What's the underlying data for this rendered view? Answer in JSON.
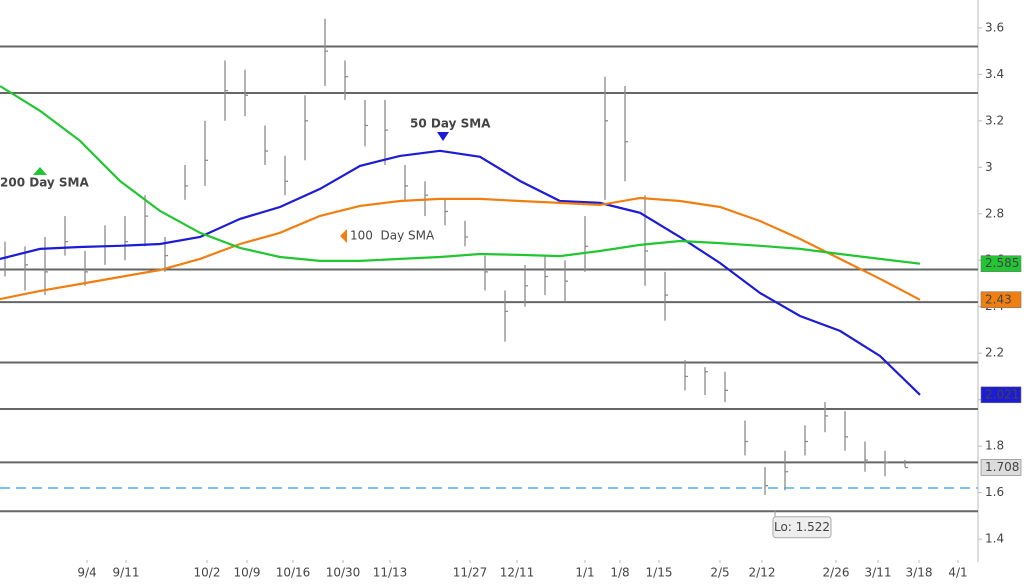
{
  "chart_data": {
    "type": "ohlc",
    "xlim": [
      0,
      195.6
    ],
    "ylim": [
      1.31,
      3.72
    ],
    "yticks": [
      1.4,
      1.6,
      1.8,
      2,
      2.2,
      2.4,
      2.6,
      2.8,
      3,
      3.2,
      3.4,
      3.6
    ],
    "xticks": [
      {
        "value": 17.4,
        "label": "9/4"
      },
      {
        "value": 25.2,
        "label": "9/11"
      },
      {
        "value": 41.4,
        "label": "10/2"
      },
      {
        "value": 49.4,
        "label": "10/9"
      },
      {
        "value": 58.6,
        "label": "10/16"
      },
      {
        "value": 68.6,
        "label": "10/30"
      },
      {
        "value": 78,
        "label": "11/13"
      },
      {
        "value": 94,
        "label": "11/27"
      },
      {
        "value": 103.4,
        "label": "12/11"
      },
      {
        "value": 117,
        "label": "1/1"
      },
      {
        "value": 124,
        "label": "1/8"
      },
      {
        "value": 131.8,
        "label": "1/15"
      },
      {
        "value": 144,
        "label": "2/5"
      },
      {
        "value": 152.4,
        "label": "2/12"
      },
      {
        "value": 167.2,
        "label": "2/26"
      },
      {
        "value": 175.6,
        "label": "3/11"
      },
      {
        "value": 183.8,
        "label": "3/18"
      },
      {
        "value": 191.6,
        "label": "4/1"
      }
    ],
    "price": {
      "color": "#8a8a8a",
      "x": [
        1,
        5,
        9,
        13,
        17,
        21,
        25,
        29,
        33,
        37,
        41,
        45,
        49,
        53,
        57,
        61,
        65,
        69,
        73,
        77,
        81,
        85,
        89,
        93,
        97,
        101,
        105,
        109,
        113,
        117,
        121,
        125,
        129,
        133,
        137,
        141,
        145,
        149,
        153,
        157,
        161,
        165,
        169,
        173,
        177,
        181
      ],
      "high": [
        2.68,
        2.66,
        2.7,
        2.79,
        2.64,
        2.75,
        2.79,
        2.88,
        2.7,
        3.01,
        3.2,
        3.46,
        3.42,
        3.18,
        3.05,
        3.31,
        3.64,
        3.46,
        3.29,
        3.29,
        3.01,
        2.94,
        2.86,
        2.77,
        2.62,
        2.47,
        2.58,
        2.62,
        2.6,
        2.79,
        3.39,
        3.35,
        2.88,
        2.55,
        2.17,
        2.14,
        2.12,
        1.91,
        1.71,
        1.78,
        1.89,
        1.99,
        1.95,
        1.82,
        1.78,
        1.74
      ],
      "low": [
        2.53,
        2.47,
        2.45,
        2.62,
        2.49,
        2.58,
        2.6,
        2.66,
        2.55,
        2.86,
        2.92,
        3.2,
        3.22,
        3.01,
        2.88,
        3.03,
        3.35,
        3.29,
        3.09,
        3.01,
        2.86,
        2.79,
        2.75,
        2.66,
        2.47,
        2.25,
        2.4,
        2.45,
        2.42,
        2.55,
        2.86,
        2.94,
        2.49,
        2.34,
        2.04,
        2.02,
        1.99,
        1.76,
        1.59,
        1.61,
        1.76,
        1.86,
        1.78,
        1.69,
        1.67,
        1.71
      ],
      "close": [
        2.61,
        2.58,
        2.55,
        2.68,
        2.55,
        2.66,
        2.68,
        2.79,
        2.62,
        2.92,
        3.03,
        3.33,
        3.31,
        3.07,
        2.94,
        3.2,
        3.5,
        3.39,
        3.18,
        3.16,
        2.92,
        2.88,
        2.81,
        2.7,
        2.55,
        2.38,
        2.49,
        2.53,
        2.51,
        2.66,
        3.2,
        3.11,
        2.64,
        2.45,
        2.1,
        2.12,
        2.04,
        1.82,
        1.63,
        1.69,
        1.82,
        1.93,
        1.84,
        1.74,
        1.73,
        1.708
      ]
    },
    "sma_x": [
      0,
      8,
      16,
      24,
      32,
      40,
      48,
      56,
      64,
      72,
      80,
      88,
      96,
      104,
      112,
      120,
      128,
      136,
      144,
      152,
      160,
      168,
      176,
      184
    ],
    "series": [
      {
        "name": "50 Day SMA",
        "color": "#1c1cd6",
        "values": [
          2.606,
          2.649,
          2.657,
          2.662,
          2.67,
          2.7,
          2.778,
          2.829,
          2.907,
          3.006,
          3.049,
          3.071,
          3.045,
          2.941,
          2.855,
          2.847,
          2.804,
          2.7,
          2.588,
          2.459,
          2.36,
          2.296,
          2.188,
          2.021
        ]
      },
      {
        "name": "100  Day SMA",
        "color": "#f07f12",
        "values": [
          2.433,
          2.468,
          2.498,
          2.528,
          2.558,
          2.606,
          2.67,
          2.718,
          2.791,
          2.834,
          2.855,
          2.864,
          2.864,
          2.855,
          2.847,
          2.838,
          2.868,
          2.855,
          2.829,
          2.769,
          2.692,
          2.606,
          2.52,
          2.43
        ]
      },
      {
        "name": "200 Day SMA",
        "color": "#22c532",
        "values": [
          3.35,
          3.243,
          3.114,
          2.941,
          2.812,
          2.718,
          2.653,
          2.614,
          2.597,
          2.597,
          2.606,
          2.614,
          2.627,
          2.623,
          2.618,
          2.64,
          2.666,
          2.683,
          2.674,
          2.662,
          2.649,
          2.627,
          2.606,
          2.585
        ]
      }
    ],
    "levels": [
      3.52,
      3.32,
      2.56,
      2.42,
      2.16,
      1.96,
      1.73,
      1.52
    ],
    "level_color": "#666666",
    "dashed_level": 1.62,
    "dashed_color": "#7ec3ef",
    "low": {
      "label": "Lo: 1.522",
      "value": 1.522,
      "x": 155
    }
  }
}
